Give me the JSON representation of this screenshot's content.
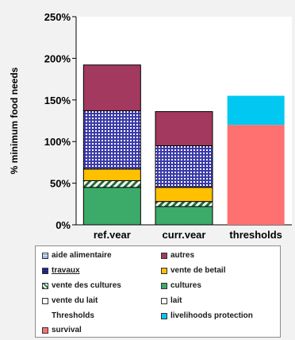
{
  "chart_data": {
    "type": "bar",
    "stacked": true,
    "ylabel": "% minimum food needs",
    "ylim": [
      0,
      250
    ],
    "yticks": [
      0,
      50,
      100,
      150,
      200,
      250
    ],
    "ytick_labels": [
      "0%",
      "50%",
      "100%",
      "150%",
      "200%",
      "250%"
    ],
    "grid": false,
    "categories": [
      "ref.year",
      "curr.year",
      "thresholds"
    ],
    "series": [
      {
        "name": "cultures",
        "color": "#3cab6a",
        "pattern": "solid",
        "values": [
          45,
          22,
          0
        ]
      },
      {
        "name": "vente des cultures",
        "color": "#1f6b3a",
        "pattern": "diagonal",
        "values": [
          8,
          6,
          0
        ]
      },
      {
        "name": "vente de betail",
        "color": "#ffc000",
        "pattern": "solid",
        "values": [
          14,
          17,
          0
        ]
      },
      {
        "name": "travaux",
        "color": "#3a3aa8",
        "pattern": "dotted",
        "values": [
          70,
          50,
          0
        ]
      },
      {
        "name": "autres",
        "color": "#a3395e",
        "pattern": "solid",
        "values": [
          55,
          41,
          0
        ]
      },
      {
        "name": "survival",
        "color": "#ff7070",
        "pattern": "solid",
        "values": [
          0,
          0,
          120
        ]
      },
      {
        "name": "livelihoods protection",
        "color": "#00c8f0",
        "pattern": "solid",
        "values": [
          0,
          0,
          35
        ]
      }
    ],
    "legend": {
      "placement": "bottom",
      "entries": [
        {
          "label": "aide alimentaire",
          "color": "#bcd4ee",
          "style": "dotted-light"
        },
        {
          "label": "autres",
          "color": "#a3395e",
          "style": "solid"
        },
        {
          "label": "travaux",
          "color": "#3a3aa8",
          "style": "dotted",
          "underline": true
        },
        {
          "label": "vente de betail",
          "color": "#ffc000",
          "style": "solid"
        },
        {
          "label": "vente des cultures",
          "color": "#1f6b3a",
          "style": "diagonal"
        },
        {
          "label": "cultures",
          "color": "#3cab6a",
          "style": "solid"
        },
        {
          "label": "vente du lait",
          "color": "#ffffff",
          "style": "solid"
        },
        {
          "label": "lait",
          "color": "#ffffff",
          "style": "solid"
        },
        {
          "label": "Thresholds",
          "color": "",
          "style": "none"
        },
        {
          "label": "livelihoods  protection",
          "color": "#00c8f0",
          "style": "solid"
        },
        {
          "label": "survival",
          "color": "#ff7070",
          "style": "solid"
        }
      ]
    }
  }
}
